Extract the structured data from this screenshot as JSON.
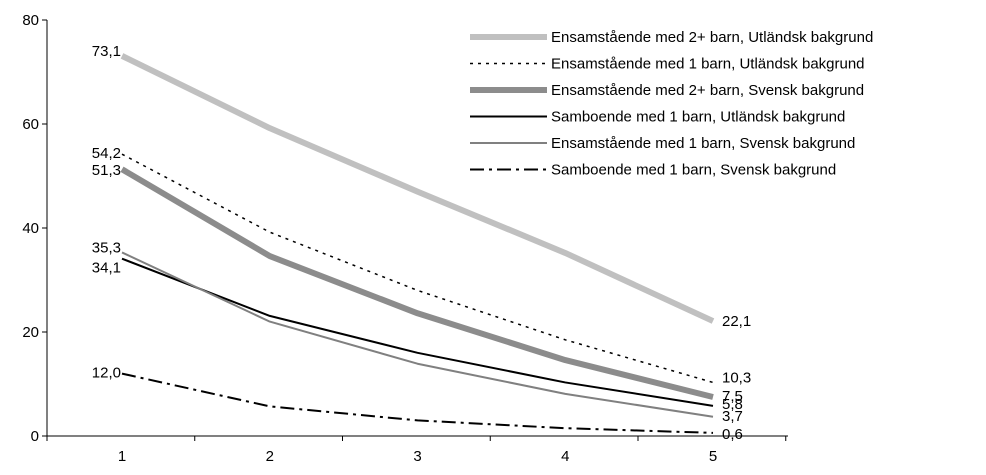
{
  "chart_data": {
    "type": "line",
    "title": "",
    "xlabel": "",
    "ylabel": "",
    "x": [
      1,
      2,
      3,
      4,
      5
    ],
    "xticks": [
      "1",
      "2",
      "3",
      "4",
      "5"
    ],
    "ylim": [
      0,
      80
    ],
    "yticks": [
      "0",
      "20",
      "40",
      "60",
      "80"
    ],
    "grid": false,
    "legend_position": "top-right",
    "series": [
      {
        "name": "Ensamstående med 2+ barn, Utländsk bakgrund",
        "values": [
          73.1,
          59.2,
          47.0,
          35.2,
          22.1
        ],
        "color": "#c0c0c0",
        "dash": "solid",
        "weight": "thick",
        "labels": {
          "first": "73,1",
          "last": "22,1"
        }
      },
      {
        "name": "Ensamstående med 1 barn, Utländsk bakgrund",
        "values": [
          54.2,
          39.2,
          28.0,
          18.5,
          10.3
        ],
        "color": "#000000",
        "dash": "dotted",
        "weight": "thin",
        "labels": {
          "first": "54,2",
          "last": "10,3"
        }
      },
      {
        "name": "Ensamstående med 2+ barn, Svensk bakgrund",
        "values": [
          51.3,
          34.6,
          23.6,
          14.6,
          7.5
        ],
        "color": "#8c8c8c",
        "dash": "solid",
        "weight": "thick",
        "labels": {
          "first": "51,3",
          "last": "7,5"
        }
      },
      {
        "name": "Samboende med 1 barn, Utländsk bakgrund",
        "values": [
          34.1,
          23.1,
          16.0,
          10.3,
          5.8
        ],
        "color": "#000000",
        "dash": "solid",
        "weight": "medium",
        "labels": {
          "first": "34,1",
          "last": "5,8"
        }
      },
      {
        "name": "Ensamstående med 1 barn, Svensk bakgrund",
        "values": [
          35.3,
          22.0,
          13.9,
          8.1,
          3.7
        ],
        "color": "#808080",
        "dash": "solid",
        "weight": "medium",
        "labels": {
          "first": "35,3",
          "last": "3,7"
        }
      },
      {
        "name": "Samboende med 1 barn, Svensk bakgrund",
        "values": [
          12.0,
          5.7,
          3.0,
          1.5,
          0.6
        ],
        "color": "#000000",
        "dash": "dashdot",
        "weight": "medium",
        "labels": {
          "first": "12,0",
          "last": "0,6"
        }
      }
    ]
  }
}
